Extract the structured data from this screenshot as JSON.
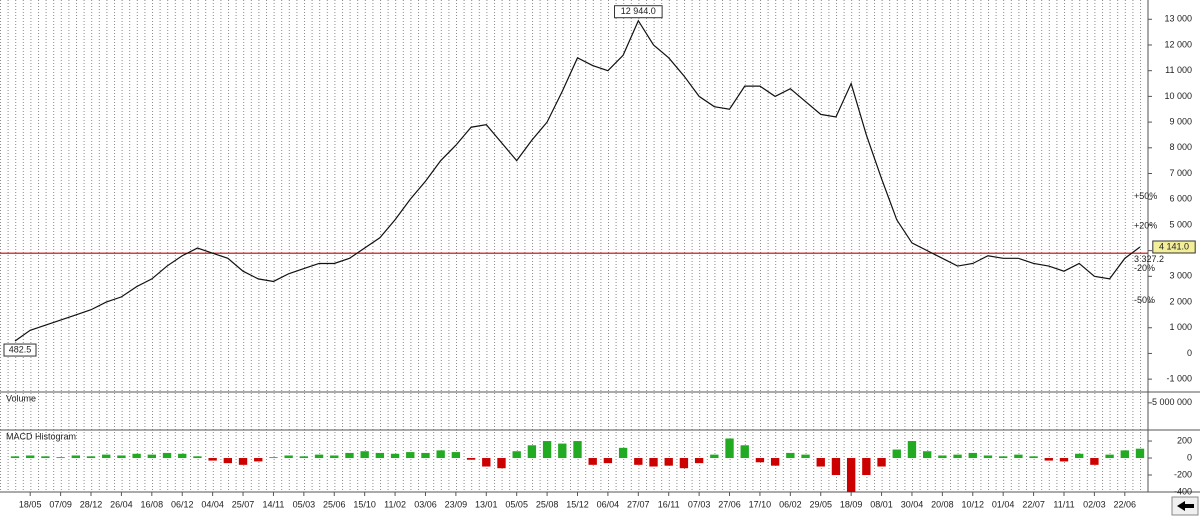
{
  "chart_data": {
    "type": "line",
    "categories": [
      null,
      "18/05",
      null,
      "07/09",
      null,
      "28/12",
      null,
      "26/04",
      null,
      "16/08",
      null,
      "06/12",
      null,
      "04/04",
      null,
      "25/07",
      null,
      "14/11",
      null,
      "05/03",
      null,
      "25/06",
      null,
      "15/10",
      null,
      "11/02",
      null,
      "03/06",
      null,
      "23/09",
      null,
      "13/01",
      null,
      "05/05",
      null,
      "25/08",
      null,
      "15/12",
      null,
      "06/04",
      null,
      "27/07",
      null,
      "16/11",
      null,
      "07/03",
      null,
      "27/06",
      null,
      "17/10",
      null,
      "06/02",
      null,
      "29/05",
      null,
      "18/09",
      null,
      "08/01",
      null,
      "30/04",
      null,
      "20/08",
      null,
      "10/12",
      null,
      "01/04",
      null,
      "22/07",
      null,
      "11/11",
      null,
      "02/03",
      null,
      "22/06",
      null
    ],
    "series": [
      {
        "color": "#111111",
        "values": [
          482.5,
          900,
          1100,
          1300,
          1500,
          1700,
          2000,
          2200,
          2600,
          2900,
          3400,
          3800,
          4100,
          3900,
          3700,
          3200,
          2900,
          2800,
          3100,
          3300,
          3500,
          3500,
          3700,
          4100,
          4500,
          5200,
          6000,
          6700,
          7500,
          8100,
          8800,
          8900,
          8200,
          7500,
          8300,
          9000,
          10200,
          11500,
          11200,
          11000,
          11600,
          12944,
          12000,
          11500,
          10800,
          10000,
          9600,
          9500,
          10400,
          10400,
          10000,
          10300,
          9800,
          9300,
          9200,
          10500,
          8500,
          6800,
          5200,
          4300,
          4000,
          3700,
          3400,
          3500,
          3800,
          3700,
          3700,
          3500,
          3400,
          3200,
          3500,
          3000,
          2900,
          3700,
          4141
        ]
      }
    ],
    "ylim": [
      -1500,
      13750
    ],
    "yticks": [
      {
        "value": 13000,
        "label": "13 000"
      },
      {
        "value": 12000,
        "label": "12 000"
      },
      {
        "value": 11000,
        "label": "11 000"
      },
      {
        "value": 10000,
        "label": "10 000"
      },
      {
        "value": 9000,
        "label": "9 000"
      },
      {
        "value": 8000,
        "label": "8 000"
      },
      {
        "value": 7000,
        "label": "7 000"
      },
      {
        "value": 6000,
        "label": "6 000"
      },
      {
        "value": 5000,
        "label": "5 000"
      },
      {
        "value": 4000,
        "label": "4 000"
      },
      {
        "value": 3000,
        "label": "3 000"
      },
      {
        "value": 2000,
        "label": "2 000"
      },
      {
        "value": 1000,
        "label": "1 000"
      },
      0,
      {
        "value": -1000,
        "label": "-1 000"
      }
    ],
    "hline": {
      "value": 3900,
      "color": "#cc0000"
    },
    "markers": [
      {
        "value": 12944,
        "label": "12 944.0"
      },
      {
        "value": 482.5,
        "label": "482.5"
      },
      {
        "value": 4141,
        "label": "4 141.0"
      }
    ],
    "annotations": [
      {
        "value": 6100,
        "label": "+50%",
        "color": "#22aa22"
      },
      {
        "value": 4950,
        "label": "+20%",
        "color": "#22aa22"
      },
      {
        "value": 3650,
        "label": "3 327.2",
        "color": "#cc0000"
      },
      {
        "value": 3300,
        "label": "-20%",
        "color": "#cc0000"
      },
      {
        "value": 2050,
        "label": "-50%",
        "color": "#cc0000"
      }
    ],
    "volume": {
      "title": "Volume",
      "ylim": [
        0,
        7000000
      ],
      "yticks": [
        {
          "value": 5000000,
          "label": "5 000 000"
        }
      ]
    },
    "macd": {
      "title": "MACD Histogram",
      "ylim": [
        -400,
        330
      ],
      "yticks": [
        200,
        0,
        -200,
        -400
      ],
      "up_color": "#22aa22",
      "down_color": "#cc0000",
      "values": [
        20,
        30,
        20,
        10,
        30,
        20,
        40,
        30,
        50,
        40,
        60,
        50,
        20,
        -30,
        -60,
        -80,
        -40,
        10,
        30,
        20,
        40,
        30,
        60,
        80,
        60,
        50,
        70,
        60,
        90,
        70,
        -20,
        -100,
        -120,
        80,
        150,
        200,
        170,
        200,
        -80,
        -60,
        120,
        -80,
        -100,
        -90,
        -120,
        -60,
        40,
        230,
        150,
        -50,
        -90,
        60,
        40,
        -100,
        -200,
        -400,
        -200,
        -100,
        100,
        200,
        80,
        30,
        40,
        60,
        30,
        20,
        40,
        20,
        -30,
        -40,
        50,
        -80,
        40,
        90,
        110
      ]
    }
  }
}
